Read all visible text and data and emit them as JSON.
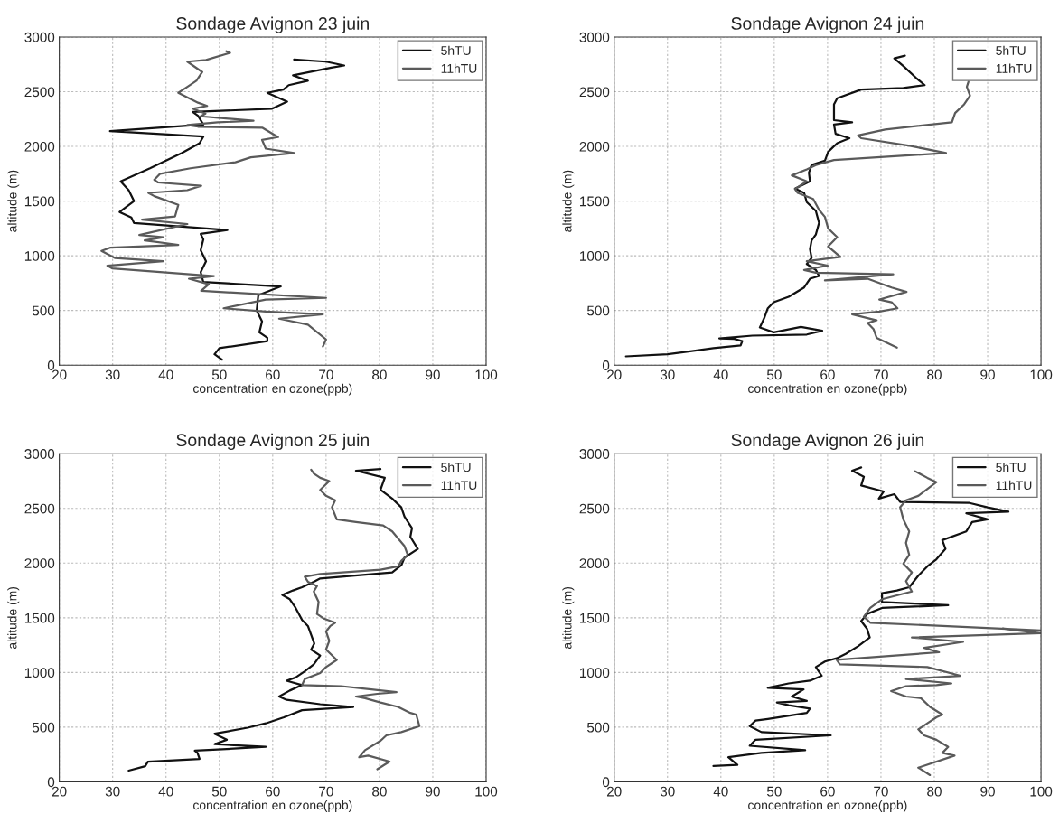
{
  "chart_data": [
    {
      "type": "line",
      "title": "Sondage Avignon 23 juin",
      "xlabel": "concentration en ozone(ppb)",
      "ylabel": "altitude (m)",
      "xlim": [
        20,
        100
      ],
      "ylim": [
        0,
        3000
      ],
      "xticks": [
        20,
        30,
        40,
        50,
        60,
        70,
        80,
        90,
        100
      ],
      "yticks": [
        0,
        500,
        1000,
        1500,
        2000,
        2500,
        3000
      ],
      "grid": true,
      "legend": "top right",
      "series": [
        {
          "name": "5hTU",
          "color": "#111111",
          "x": [
            50.5,
            49.1,
            50,
            59,
            59,
            57.5,
            58,
            57,
            57.3,
            61.5,
            47,
            46.5,
            47.5,
            46.5,
            47,
            46.5,
            51.5,
            34,
            33.5,
            31.3,
            34,
            33,
            31.5,
            37,
            43,
            46.3,
            47,
            29.5,
            47,
            46,
            45,
            59.9,
            62.7,
            59,
            62,
            63,
            66.6,
            63.8,
            71,
            73.4,
            70,
            64
          ],
          "values": [
            50,
            100,
            155,
            220,
            250,
            300,
            400,
            500,
            640,
            720,
            760,
            850,
            950,
            1050,
            1150,
            1200,
            1235,
            1300,
            1350,
            1400,
            1500,
            1600,
            1680,
            1800,
            1940,
            2030,
            2090,
            2140,
            2200,
            2280,
            2315,
            2345,
            2410,
            2490,
            2520,
            2560,
            2600,
            2650,
            2720,
            2740,
            2775,
            2795
          ]
        },
        {
          "name": "11hTU",
          "color": "#5a5a5a",
          "x": [
            69.4,
            70,
            66.6,
            61.2,
            69.4,
            58.7,
            50.8,
            58.7,
            70,
            46.6,
            48,
            44.3,
            49,
            29.9,
            29,
            39.5,
            30.4,
            27.9,
            29.6,
            42.3,
            36,
            39.5,
            35,
            44,
            35.5,
            41.7,
            42.3,
            37.8,
            36.7,
            44,
            46.6,
            38.5,
            37.8,
            38.9,
            44.6,
            53,
            55.9,
            64,
            58.7,
            58,
            61,
            58.1,
            46,
            44,
            49.7,
            56.4,
            46.5,
            47.4,
            45,
            47.7,
            46,
            42.3,
            44,
            45.7,
            46.8,
            44,
            47.5,
            52,
            51.3
          ],
          "values": [
            170,
            235,
            370,
            425,
            465,
            490,
            520,
            600,
            615,
            680,
            740,
            790,
            815,
            885,
            910,
            950,
            980,
            1045,
            1075,
            1100,
            1140,
            1170,
            1190,
            1290,
            1330,
            1360,
            1465,
            1545,
            1575,
            1600,
            1640,
            1670,
            1695,
            1750,
            1800,
            1855,
            1900,
            1940,
            1980,
            2060,
            2085,
            2170,
            2180,
            2195,
            2220,
            2235,
            2275,
            2300,
            2345,
            2370,
            2400,
            2490,
            2545,
            2600,
            2680,
            2775,
            2790,
            2855,
            2870
          ]
        }
      ]
    },
    {
      "type": "line",
      "title": "Sondage Avignon 24 juin",
      "xlabel": "concentration en ozone(ppb)",
      "ylabel": "altitude (m)",
      "xlim": [
        20,
        100
      ],
      "ylim": [
        0,
        3000
      ],
      "xticks": [
        20,
        30,
        40,
        50,
        60,
        70,
        80,
        90,
        100
      ],
      "yticks": [
        0,
        500,
        1000,
        1500,
        2000,
        2500,
        3000
      ],
      "grid": true,
      "legend": "top right",
      "series": [
        {
          "name": "5hTU",
          "color": "#111111",
          "x": [
            22.2,
            30,
            38.6,
            43.7,
            44,
            42.5,
            39.7,
            45.9,
            56.1,
            59,
            55,
            49.9,
            47.3,
            48.2,
            48.8,
            49.9,
            52.7,
            55.6,
            56.7,
            58.4,
            57.8,
            56.1,
            57,
            56.7,
            57,
            57.8,
            58.4,
            57.8,
            56.1,
            55.6,
            53.9,
            56.7,
            56.5,
            57,
            59.5,
            60.1,
            61.8,
            64.1,
            61.5,
            61.2,
            64.6,
            61.2,
            61.2,
            61.8,
            66.3,
            74.2,
            78.2,
            76.5,
            74.2,
            72.5,
            74.5
          ],
          "values": [
            80,
            100,
            155,
            180,
            220,
            240,
            245,
            270,
            280,
            315,
            350,
            300,
            345,
            440,
            520,
            575,
            625,
            710,
            790,
            815,
            870,
            925,
            980,
            1060,
            1140,
            1195,
            1300,
            1410,
            1490,
            1575,
            1615,
            1680,
            1760,
            1830,
            1870,
            1950,
            2030,
            2075,
            2115,
            2200,
            2220,
            2240,
            2385,
            2440,
            2520,
            2535,
            2560,
            2630,
            2735,
            2805,
            2830
          ]
        },
        {
          "name": "11hTU",
          "color": "#5a5a5a",
          "x": [
            73,
            69.2,
            68.6,
            67.5,
            69.2,
            64.6,
            69.7,
            73.1,
            72,
            69.7,
            74.8,
            72,
            67.5,
            59.5,
            72.3,
            57.8,
            55.6,
            60,
            56.1,
            62.4,
            60.1,
            61.8,
            60.1,
            59.5,
            58.4,
            57.3,
            54.4,
            53.9,
            56.1,
            53.3,
            56.1,
            57.8,
            61.2,
            82.2,
            75.4,
            66.3,
            65.7,
            70.8,
            83.3,
            83.9,
            85.6,
            86.7,
            86.1,
            86.4
          ],
          "values": [
            160,
            250,
            330,
            385,
            410,
            465,
            490,
            520,
            575,
            600,
            670,
            710,
            790,
            775,
            830,
            845,
            870,
            910,
            950,
            990,
            1085,
            1170,
            1250,
            1355,
            1420,
            1520,
            1575,
            1610,
            1680,
            1735,
            1790,
            1830,
            1875,
            1940,
            2005,
            2075,
            2100,
            2155,
            2220,
            2305,
            2385,
            2465,
            2545,
            2590
          ]
        }
      ]
    },
    {
      "type": "line",
      "title": "Sondage Avignon 25 juin",
      "xlabel": "concentration en ozone(ppb)",
      "ylabel": "altitude (m)",
      "xlim": [
        20,
        100
      ],
      "ylim": [
        0,
        3000
      ],
      "xticks": [
        20,
        30,
        40,
        50,
        60,
        70,
        80,
        90,
        100
      ],
      "yticks": [
        0,
        500,
        1000,
        1500,
        2000,
        2500,
        3000
      ],
      "grid": true,
      "legend": "top right",
      "series": [
        {
          "name": "5hTU",
          "color": "#111111",
          "x": [
            33,
            36.1,
            36.6,
            46.3,
            45.9,
            45.4,
            58.7,
            49.1,
            51.4,
            49.1,
            55.3,
            58.7,
            62.1,
            65.5,
            75.1,
            68.9,
            62.6,
            61.2,
            63.2,
            65.5,
            62.6,
            64.3,
            66,
            67.7,
            68.9,
            67.2,
            67.8,
            67.2,
            66.6,
            65.5,
            64.3,
            63.2,
            61.8,
            63.8,
            65.5,
            67.7,
            68.9,
            82.4,
            84.1,
            84.7,
            87.2,
            85.8,
            86.1,
            84.7,
            84.1,
            82.4,
            80.2,
            81,
            75.6,
            80.2
          ],
          "values": [
            103,
            143,
            184,
            210,
            265,
            285,
            320,
            345,
            385,
            440,
            495,
            535,
            590,
            655,
            685,
            710,
            750,
            780,
            835,
            885,
            925,
            955,
            1010,
            1075,
            1155,
            1210,
            1265,
            1345,
            1425,
            1480,
            1590,
            1670,
            1710,
            1750,
            1780,
            1830,
            1860,
            1915,
            1980,
            2050,
            2130,
            2240,
            2320,
            2425,
            2510,
            2590,
            2670,
            2780,
            2845,
            2860
          ]
        },
        {
          "name": "11hTU",
          "color": "#5a5a5a",
          "x": [
            79.6,
            81.9,
            77.9,
            76.2,
            77.3,
            80.2,
            81.3,
            84.1,
            87.5,
            86.9,
            85.8,
            83.5,
            80.2,
            77.3,
            75.6,
            79.6,
            83.2,
            78.5,
            72.8,
            65.5,
            66,
            68.9,
            70,
            72,
            70,
            70.6,
            70,
            70.8,
            71.7,
            69.5,
            68.3,
            68.6,
            67.7,
            68.3,
            66.6,
            66,
            68.9,
            80.2,
            83.5,
            84.1,
            85.3,
            84.7,
            82.4,
            80.7,
            75.6,
            72,
            71.1,
            71.7,
            70,
            68.9,
            70.6,
            68.9,
            67.7,
            67.2
          ],
          "values": [
            115,
            185,
            240,
            225,
            290,
            375,
            425,
            455,
            510,
            615,
            630,
            685,
            725,
            765,
            780,
            805,
            820,
            845,
            875,
            885,
            940,
            995,
            1050,
            1115,
            1210,
            1290,
            1375,
            1425,
            1455,
            1495,
            1535,
            1645,
            1740,
            1790,
            1830,
            1875,
            1900,
            1940,
            1970,
            2020,
            2075,
            2155,
            2290,
            2345,
            2375,
            2400,
            2510,
            2575,
            2615,
            2670,
            2750,
            2780,
            2820,
            2855
          ]
        }
      ]
    },
    {
      "type": "line",
      "title": "Sondage Avignon 26 juin",
      "xlabel": "concentration en ozone(ppb)",
      "ylabel": "altitude (m)",
      "xlim": [
        20,
        100
      ],
      "ylim": [
        0,
        3000
      ],
      "xticks": [
        20,
        30,
        40,
        50,
        60,
        70,
        80,
        90,
        100
      ],
      "yticks": [
        0,
        500,
        1000,
        1500,
        2000,
        2500,
        3000
      ],
      "grid": true,
      "legend": "top right",
      "series": [
        {
          "name": "5hTU",
          "color": "#111111",
          "x": [
            38.6,
            43.1,
            41.4,
            47.6,
            55.8,
            45.4,
            46.5,
            60.6,
            47.6,
            45.4,
            46.5,
            48.8,
            56.1,
            56.7,
            52.7,
            50.5,
            56.1,
            53.3,
            55.5,
            48.8,
            52.7,
            56.7,
            58.9,
            57.8,
            59.5,
            61.7,
            63.4,
            65.7,
            67.9,
            67.4,
            66.3,
            67.4,
            70.2,
            82.6,
            70.2,
            70.2,
            73,
            75.3,
            77,
            78.7,
            80.4,
            82.1,
            81.5,
            86,
            87.1,
            90,
            86,
            93.9,
            90,
            86.6,
            73.6,
            72.5,
            69.6,
            70.5,
            66.3,
            66.8,
            64.6,
            66.3
          ],
          "values": [
            145,
            155,
            225,
            265,
            290,
            330,
            385,
            425,
            455,
            510,
            560,
            575,
            630,
            670,
            700,
            725,
            740,
            780,
            845,
            860,
            900,
            925,
            970,
            1050,
            1100,
            1130,
            1170,
            1240,
            1320,
            1400,
            1470,
            1535,
            1590,
            1615,
            1645,
            1725,
            1750,
            1780,
            1885,
            1970,
            2035,
            2130,
            2210,
            2290,
            2375,
            2400,
            2455,
            2470,
            2510,
            2550,
            2560,
            2630,
            2590,
            2655,
            2710,
            2790,
            2845,
            2875
          ]
        },
        {
          "name": "11hTU",
          "color": "#5a5a5a",
          "x": [
            79.2,
            77,
            83.8,
            81.5,
            82.6,
            80.4,
            78.1,
            77,
            78.7,
            80.4,
            81.5,
            79.2,
            77.5,
            74.7,
            71.9,
            74.7,
            80.4,
            83.2,
            74.7,
            84.9,
            78.7,
            62.3,
            61.7,
            80.9,
            78.1,
            85.4,
            75.8,
            100,
            92.8,
            100,
            68,
            66.8,
            68,
            70.2,
            75.8,
            74.7,
            75.8,
            74.2,
            75.3,
            74.7,
            75.3,
            74.2,
            73.6,
            74.7,
            77,
            80.4,
            78.7,
            76.4
          ],
          "values": [
            62,
            130,
            240,
            265,
            320,
            385,
            425,
            480,
            535,
            590,
            615,
            685,
            765,
            780,
            830,
            875,
            885,
            900,
            940,
            970,
            1050,
            1075,
            1115,
            1185,
            1225,
            1280,
            1320,
            1360,
            1400,
            1385,
            1455,
            1510,
            1590,
            1670,
            1740,
            1835,
            1915,
            1995,
            2075,
            2185,
            2290,
            2400,
            2510,
            2575,
            2615,
            2740,
            2780,
            2840
          ]
        }
      ]
    }
  ]
}
